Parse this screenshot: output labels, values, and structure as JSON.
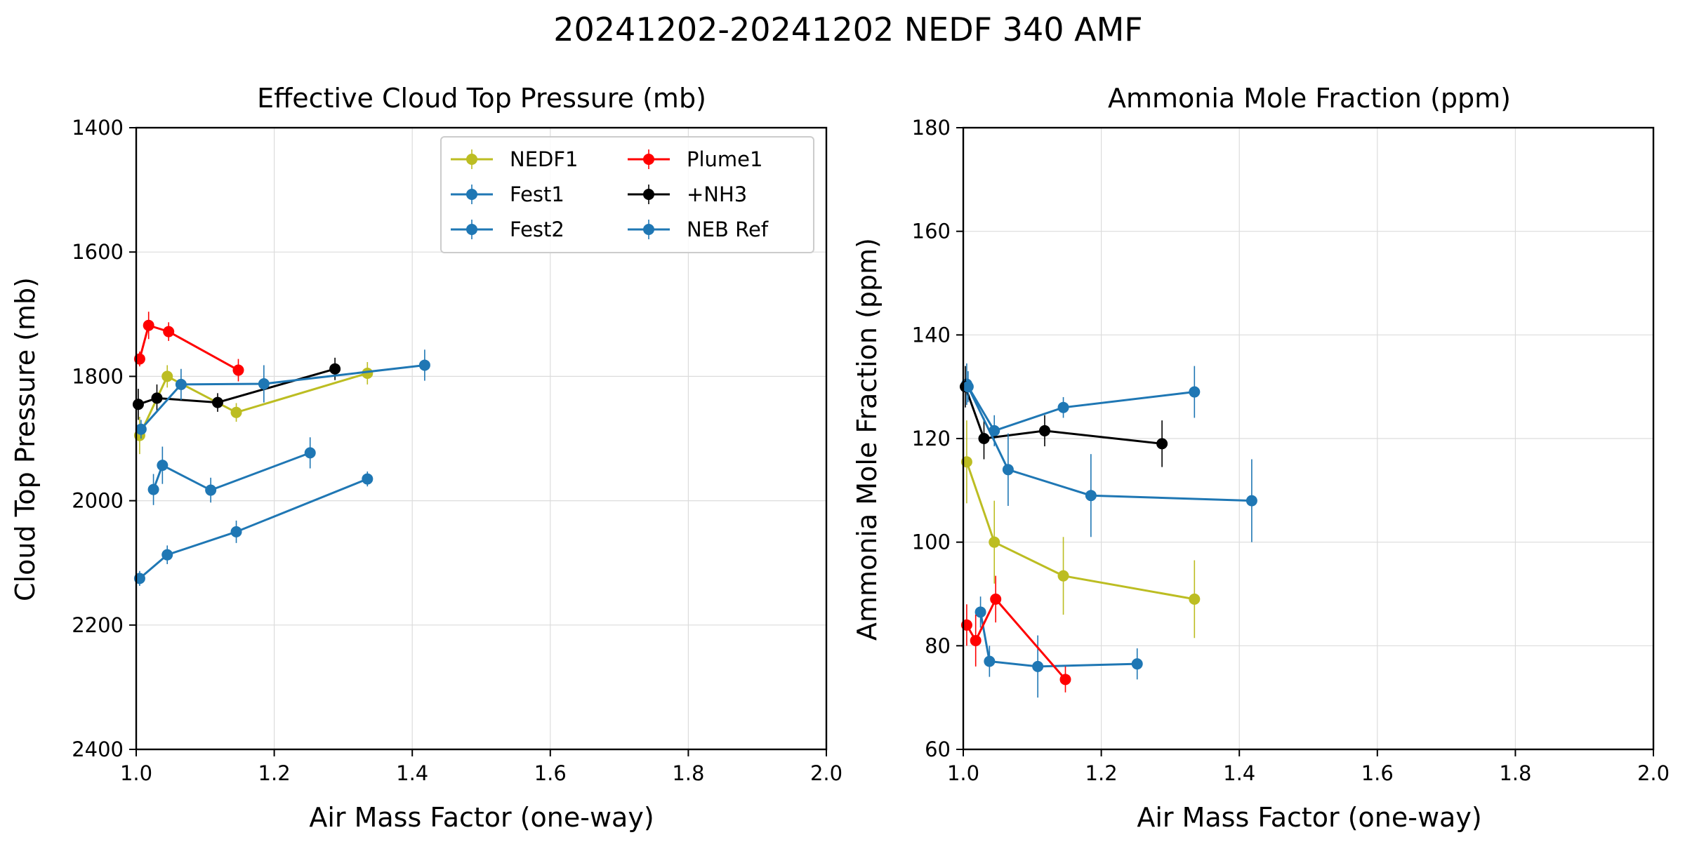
{
  "figure_title": "20241202-20241202 NEDF 340 AMF",
  "chart_data": [
    {
      "type": "line",
      "title": "Effective Cloud Top Pressure (mb)",
      "xlabel": "Air Mass Factor (one-way)",
      "ylabel": "Cloud Top Pressure (mb)",
      "xlim": [
        1.0,
        2.0
      ],
      "ylim": [
        2400,
        1400
      ],
      "y_inverted": true,
      "xticks": [
        1.0,
        1.2,
        1.4,
        1.6,
        1.8,
        2.0
      ],
      "yticks": [
        1400,
        1600,
        1800,
        2000,
        2200,
        2400
      ],
      "grid": true,
      "legend": {
        "position": "upper right",
        "ncol": 2
      },
      "series": [
        {
          "name": "NEDF1",
          "color": "#bcbd22",
          "x": [
            1.005,
            1.045,
            1.145,
            1.335
          ],
          "y": [
            1895,
            1800,
            1858,
            1795
          ],
          "yerr": [
            30,
            18,
            15,
            18
          ]
        },
        {
          "name": "Fest1",
          "color": "#1f77b4",
          "x": [
            1.025,
            1.038,
            1.108,
            1.252
          ],
          "y": [
            1982,
            1943,
            1983,
            1923
          ],
          "yerr": [
            25,
            30,
            20,
            25
          ]
        },
        {
          "name": "Fest2",
          "color": "#1f77b4",
          "x": [
            1.005,
            1.045,
            1.145,
            1.335
          ],
          "y": [
            2125,
            2087,
            2050,
            1965
          ],
          "yerr": [
            12,
            15,
            18,
            12
          ]
        },
        {
          "name": "Plume1",
          "color": "#ff0000",
          "x": [
            1.005,
            1.018,
            1.047,
            1.148
          ],
          "y": [
            1772,
            1718,
            1728,
            1790
          ],
          "yerr": [
            12,
            22,
            15,
            18
          ]
        },
        {
          "name": "+NH3",
          "color": "#000000",
          "x": [
            1.003,
            1.03,
            1.118,
            1.288
          ],
          "y": [
            1845,
            1835,
            1842,
            1788
          ],
          "yerr": [
            25,
            22,
            15,
            18
          ]
        },
        {
          "name": "NEB Ref",
          "color": "#1f77b4",
          "x": [
            1.007,
            1.065,
            1.185,
            1.418
          ],
          "y": [
            1885,
            1813,
            1812,
            1782
          ],
          "yerr": [
            15,
            25,
            30,
            25
          ]
        }
      ]
    },
    {
      "type": "line",
      "title": "Ammonia Mole Fraction (ppm)",
      "xlabel": "Air Mass Factor (one-way)",
      "ylabel": "Ammonia Mole Fraction (ppm)",
      "xlim": [
        1.0,
        2.0
      ],
      "ylim": [
        60,
        180
      ],
      "xticks": [
        1.0,
        1.2,
        1.4,
        1.6,
        1.8,
        2.0
      ],
      "yticks": [
        60,
        80,
        100,
        120,
        140,
        160,
        180
      ],
      "grid": true,
      "series": [
        {
          "name": "NEDF1",
          "color": "#bcbd22",
          "x": [
            1.005,
            1.045,
            1.145,
            1.335
          ],
          "y": [
            115.5,
            100,
            93.5,
            89
          ],
          "yerr": [
            8,
            8,
            7.5,
            7.5
          ]
        },
        {
          "name": "Fest1",
          "color": "#1f77b4",
          "x": [
            1.025,
            1.038,
            1.108,
            1.252
          ],
          "y": [
            86.5,
            77,
            76,
            76.5
          ],
          "yerr": [
            3,
            3,
            6,
            3
          ]
        },
        {
          "name": "Fest2",
          "color": "#1f77b4",
          "x": [
            1.005,
            1.045,
            1.145,
            1.335
          ],
          "y": [
            130.5,
            121.5,
            126,
            129
          ],
          "yerr": [
            4,
            3,
            2,
            5
          ]
        },
        {
          "name": "Plume1",
          "color": "#ff0000",
          "x": [
            1.005,
            1.018,
            1.047,
            1.148
          ],
          "y": [
            84,
            81,
            89,
            73.5
          ],
          "yerr": [
            4,
            5,
            4.5,
            2.5
          ]
        },
        {
          "name": "+NH3",
          "color": "#000000",
          "x": [
            1.003,
            1.03,
            1.118,
            1.288
          ],
          "y": [
            130,
            120,
            121.5,
            119
          ],
          "yerr": [
            4,
            4,
            3,
            4.5
          ]
        },
        {
          "name": "NEB Ref",
          "color": "#1f77b4",
          "x": [
            1.007,
            1.065,
            1.185,
            1.418
          ],
          "y": [
            130,
            114,
            109,
            108
          ],
          "yerr": [
            3,
            7,
            8,
            8
          ]
        }
      ]
    }
  ]
}
